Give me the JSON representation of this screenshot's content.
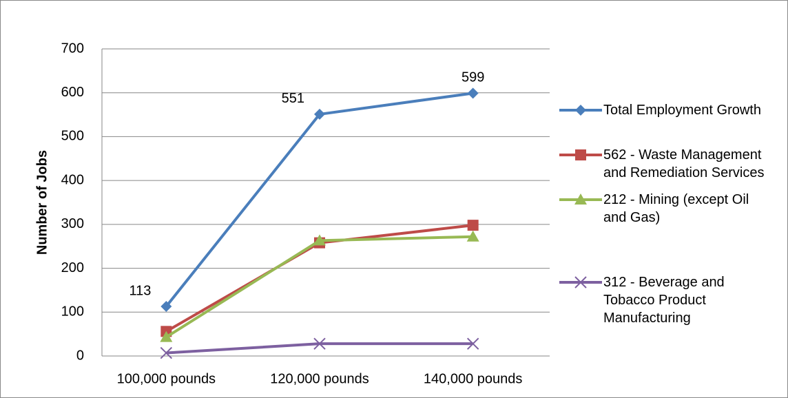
{
  "chart_data": {
    "type": "line",
    "y_label": "Number of Jobs",
    "categories": [
      "100,000 pounds",
      "120,000 pounds",
      "140,000 pounds"
    ],
    "series": [
      {
        "name": "Total Employment Growth",
        "color": "#4a7ebb",
        "marker": "diamond",
        "show_values": true,
        "values": [
          113,
          551,
          599
        ]
      },
      {
        "name": "562 - Waste Management and Remediation Services",
        "color": "#be4b48",
        "marker": "square",
        "values": [
          56,
          258,
          298
        ]
      },
      {
        "name": "212 - Mining (except Oil and Gas)",
        "color": "#98b954",
        "marker": "triangle",
        "values": [
          43,
          263,
          272
        ]
      },
      {
        "name": "312 - Beverage and Tobacco Product Manufacturing",
        "color": "#7d60a0",
        "marker": "x",
        "values": [
          7,
          28,
          28
        ]
      }
    ],
    "ylim": [
      0,
      700
    ],
    "yticks": [
      0,
      100,
      200,
      300,
      400,
      500,
      600,
      700
    ],
    "grid": true,
    "legend": "right"
  }
}
